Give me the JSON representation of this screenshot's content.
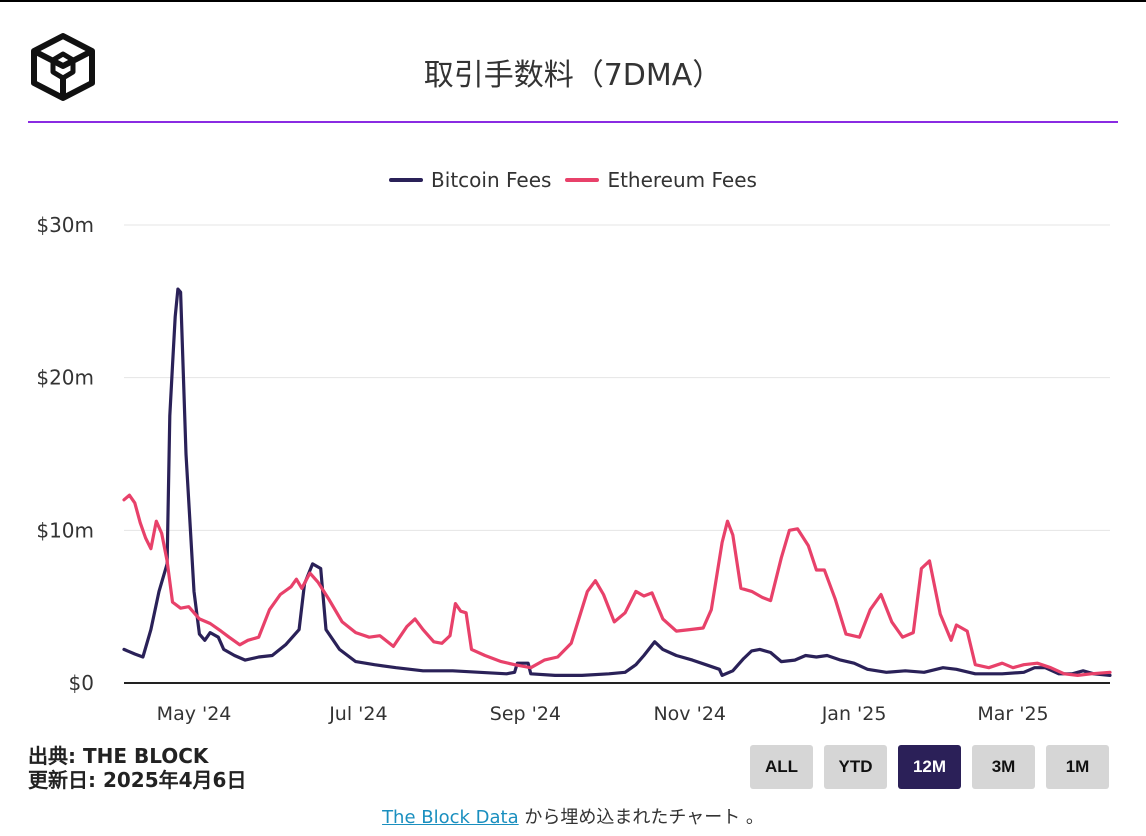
{
  "header": {
    "title": "取引手数料（7DMA）"
  },
  "legend": {
    "bitcoin_label": "Bitcoin Fees",
    "ethereum_label": "Ethereum Fees"
  },
  "colors": {
    "bitcoin": "#2a2158",
    "ethereum": "#e8416a",
    "accent_rule": "#8a2be2",
    "active_button": "#2b2058"
  },
  "footer": {
    "source_line": "出典: THE BLOCK",
    "updated_line": "更新日: 2025年4月6日",
    "embed_link": "The Block Data",
    "embed_suffix": " から埋め込まれたチャート 。"
  },
  "range_buttons": [
    {
      "label": "ALL",
      "active": false
    },
    {
      "label": "YTD",
      "active": false
    },
    {
      "label": "12M",
      "active": true
    },
    {
      "label": "3M",
      "active": false
    },
    {
      "label": "1M",
      "active": false
    }
  ],
  "chart_data": {
    "type": "line",
    "title": "取引手数料（7DMA）",
    "xlabel": "",
    "ylabel": "",
    "ylim": [
      0,
      30
    ],
    "yticks": [
      0,
      10,
      20,
      30
    ],
    "ytick_labels": [
      "$0",
      "$10m",
      "$20m",
      "$30m"
    ],
    "xlim": [
      "2024-04-05",
      "2025-04-06"
    ],
    "xticks": [
      "2024-05-01",
      "2024-07-01",
      "2024-09-01",
      "2024-11-01",
      "2025-01-01",
      "2025-03-01"
    ],
    "xtick_labels": [
      "May '24",
      "Jul '24",
      "Sep '24",
      "Nov '24",
      "Jan '25",
      "Mar '25"
    ],
    "grid": true,
    "legend_position": "top",
    "series": [
      {
        "name": "Bitcoin Fees",
        "color": "#2a2158",
        "points": [
          [
            "2024-04-05",
            2.2
          ],
          [
            "2024-04-09",
            1.9
          ],
          [
            "2024-04-12",
            1.7
          ],
          [
            "2024-04-15",
            3.5
          ],
          [
            "2024-04-18",
            6.0
          ],
          [
            "2024-04-21",
            7.8
          ],
          [
            "2024-04-22",
            17.5
          ],
          [
            "2024-04-23",
            20.8
          ],
          [
            "2024-04-24",
            24.0
          ],
          [
            "2024-04-25",
            25.8
          ],
          [
            "2024-04-26",
            25.6
          ],
          [
            "2024-04-28",
            15.0
          ],
          [
            "2024-05-01",
            6.0
          ],
          [
            "2024-05-03",
            3.2
          ],
          [
            "2024-05-05",
            2.8
          ],
          [
            "2024-05-07",
            3.3
          ],
          [
            "2024-05-10",
            3.0
          ],
          [
            "2024-05-12",
            2.2
          ],
          [
            "2024-05-16",
            1.8
          ],
          [
            "2024-05-20",
            1.5
          ],
          [
            "2024-05-25",
            1.7
          ],
          [
            "2024-05-30",
            1.8
          ],
          [
            "2024-06-04",
            2.5
          ],
          [
            "2024-06-09",
            3.5
          ],
          [
            "2024-06-11",
            6.5
          ],
          [
            "2024-06-14",
            7.8
          ],
          [
            "2024-06-17",
            7.5
          ],
          [
            "2024-06-19",
            3.5
          ],
          [
            "2024-06-24",
            2.2
          ],
          [
            "2024-06-30",
            1.4
          ],
          [
            "2024-07-07",
            1.2
          ],
          [
            "2024-07-15",
            1.0
          ],
          [
            "2024-07-25",
            0.8
          ],
          [
            "2024-08-05",
            0.8
          ],
          [
            "2024-08-15",
            0.7
          ],
          [
            "2024-08-25",
            0.6
          ],
          [
            "2024-08-28",
            0.7
          ],
          [
            "2024-08-29",
            1.3
          ],
          [
            "2024-09-02",
            1.3
          ],
          [
            "2024-09-03",
            0.6
          ],
          [
            "2024-09-12",
            0.5
          ],
          [
            "2024-09-22",
            0.5
          ],
          [
            "2024-10-02",
            0.6
          ],
          [
            "2024-10-08",
            0.7
          ],
          [
            "2024-10-12",
            1.2
          ],
          [
            "2024-10-15",
            1.8
          ],
          [
            "2024-10-19",
            2.7
          ],
          [
            "2024-10-22",
            2.2
          ],
          [
            "2024-10-27",
            1.8
          ],
          [
            "2024-11-02",
            1.5
          ],
          [
            "2024-11-07",
            1.2
          ],
          [
            "2024-11-12",
            0.9
          ],
          [
            "2024-11-13",
            0.5
          ],
          [
            "2024-11-17",
            0.8
          ],
          [
            "2024-11-21",
            1.6
          ],
          [
            "2024-11-24",
            2.1
          ],
          [
            "2024-11-27",
            2.2
          ],
          [
            "2024-12-01",
            2.0
          ],
          [
            "2024-12-05",
            1.4
          ],
          [
            "2024-12-10",
            1.5
          ],
          [
            "2024-12-14",
            1.8
          ],
          [
            "2024-12-18",
            1.7
          ],
          [
            "2024-12-22",
            1.8
          ],
          [
            "2024-12-27",
            1.5
          ],
          [
            "2025-01-01",
            1.3
          ],
          [
            "2025-01-06",
            0.9
          ],
          [
            "2025-01-13",
            0.7
          ],
          [
            "2025-01-20",
            0.8
          ],
          [
            "2025-01-27",
            0.7
          ],
          [
            "2025-02-03",
            1.0
          ],
          [
            "2025-02-08",
            0.9
          ],
          [
            "2025-02-15",
            0.6
          ],
          [
            "2025-02-25",
            0.6
          ],
          [
            "2025-03-05",
            0.7
          ],
          [
            "2025-03-09",
            1.0
          ],
          [
            "2025-03-13",
            1.0
          ],
          [
            "2025-03-18",
            0.6
          ],
          [
            "2025-03-23",
            0.6
          ],
          [
            "2025-03-27",
            0.8
          ],
          [
            "2025-03-31",
            0.6
          ],
          [
            "2025-04-06",
            0.5
          ]
        ]
      },
      {
        "name": "Ethereum Fees",
        "color": "#e8416a",
        "points": [
          [
            "2024-04-05",
            12.0
          ],
          [
            "2024-04-07",
            12.3
          ],
          [
            "2024-04-09",
            11.8
          ],
          [
            "2024-04-11",
            10.5
          ],
          [
            "2024-04-13",
            9.5
          ],
          [
            "2024-04-15",
            8.8
          ],
          [
            "2024-04-17",
            10.6
          ],
          [
            "2024-04-19",
            9.8
          ],
          [
            "2024-04-21",
            8.0
          ],
          [
            "2024-04-23",
            5.3
          ],
          [
            "2024-04-26",
            4.9
          ],
          [
            "2024-04-29",
            5.0
          ],
          [
            "2024-05-03",
            4.2
          ],
          [
            "2024-05-07",
            3.9
          ],
          [
            "2024-05-11",
            3.4
          ],
          [
            "2024-05-14",
            3.0
          ],
          [
            "2024-05-18",
            2.5
          ],
          [
            "2024-05-21",
            2.8
          ],
          [
            "2024-05-25",
            3.0
          ],
          [
            "2024-05-29",
            4.8
          ],
          [
            "2024-06-02",
            5.8
          ],
          [
            "2024-06-06",
            6.3
          ],
          [
            "2024-06-08",
            6.8
          ],
          [
            "2024-06-10",
            6.2
          ],
          [
            "2024-06-13",
            7.2
          ],
          [
            "2024-06-16",
            6.6
          ],
          [
            "2024-06-20",
            5.5
          ],
          [
            "2024-06-25",
            4.0
          ],
          [
            "2024-06-30",
            3.3
          ],
          [
            "2024-07-05",
            3.0
          ],
          [
            "2024-07-09",
            3.1
          ],
          [
            "2024-07-14",
            2.4
          ],
          [
            "2024-07-19",
            3.7
          ],
          [
            "2024-07-22",
            4.2
          ],
          [
            "2024-07-25",
            3.5
          ],
          [
            "2024-07-29",
            2.7
          ],
          [
            "2024-08-01",
            2.6
          ],
          [
            "2024-08-04",
            3.1
          ],
          [
            "2024-08-06",
            5.2
          ],
          [
            "2024-08-08",
            4.7
          ],
          [
            "2024-08-10",
            4.6
          ],
          [
            "2024-08-12",
            2.2
          ],
          [
            "2024-08-17",
            1.8
          ],
          [
            "2024-08-23",
            1.4
          ],
          [
            "2024-08-28",
            1.2
          ],
          [
            "2024-09-03",
            1.0
          ],
          [
            "2024-09-08",
            1.5
          ],
          [
            "2024-09-13",
            1.7
          ],
          [
            "2024-09-18",
            2.6
          ],
          [
            "2024-09-21",
            4.3
          ],
          [
            "2024-09-24",
            6.0
          ],
          [
            "2024-09-27",
            6.7
          ],
          [
            "2024-09-30",
            5.8
          ],
          [
            "2024-10-04",
            4.0
          ],
          [
            "2024-10-08",
            4.6
          ],
          [
            "2024-10-12",
            6.0
          ],
          [
            "2024-10-15",
            5.7
          ],
          [
            "2024-10-18",
            5.9
          ],
          [
            "2024-10-22",
            4.2
          ],
          [
            "2024-10-27",
            3.4
          ],
          [
            "2024-11-01",
            3.5
          ],
          [
            "2024-11-06",
            3.6
          ],
          [
            "2024-11-09",
            4.8
          ],
          [
            "2024-11-13",
            9.2
          ],
          [
            "2024-11-15",
            10.6
          ],
          [
            "2024-11-17",
            9.7
          ],
          [
            "2024-11-20",
            6.2
          ],
          [
            "2024-11-24",
            6.0
          ],
          [
            "2024-11-28",
            5.6
          ],
          [
            "2024-12-01",
            5.4
          ],
          [
            "2024-12-05",
            8.2
          ],
          [
            "2024-12-08",
            10.0
          ],
          [
            "2024-12-11",
            10.1
          ],
          [
            "2024-12-15",
            9.0
          ],
          [
            "2024-12-18",
            7.4
          ],
          [
            "2024-12-21",
            7.4
          ],
          [
            "2024-12-25",
            5.5
          ],
          [
            "2024-12-29",
            3.2
          ],
          [
            "2025-01-03",
            3.0
          ],
          [
            "2025-01-07",
            4.8
          ],
          [
            "2025-01-11",
            5.8
          ],
          [
            "2025-01-15",
            4.0
          ],
          [
            "2025-01-19",
            3.0
          ],
          [
            "2025-01-23",
            3.3
          ],
          [
            "2025-01-26",
            7.5
          ],
          [
            "2025-01-29",
            8.0
          ],
          [
            "2025-02-02",
            4.5
          ],
          [
            "2025-02-06",
            2.8
          ],
          [
            "2025-02-08",
            3.8
          ],
          [
            "2025-02-12",
            3.4
          ],
          [
            "2025-02-15",
            1.2
          ],
          [
            "2025-02-20",
            1.0
          ],
          [
            "2025-02-25",
            1.3
          ],
          [
            "2025-03-01",
            1.0
          ],
          [
            "2025-03-05",
            1.2
          ],
          [
            "2025-03-10",
            1.3
          ],
          [
            "2025-03-15",
            1.0
          ],
          [
            "2025-03-20",
            0.6
          ],
          [
            "2025-03-25",
            0.5
          ],
          [
            "2025-03-30",
            0.6
          ],
          [
            "2025-04-06",
            0.7
          ]
        ]
      }
    ]
  }
}
